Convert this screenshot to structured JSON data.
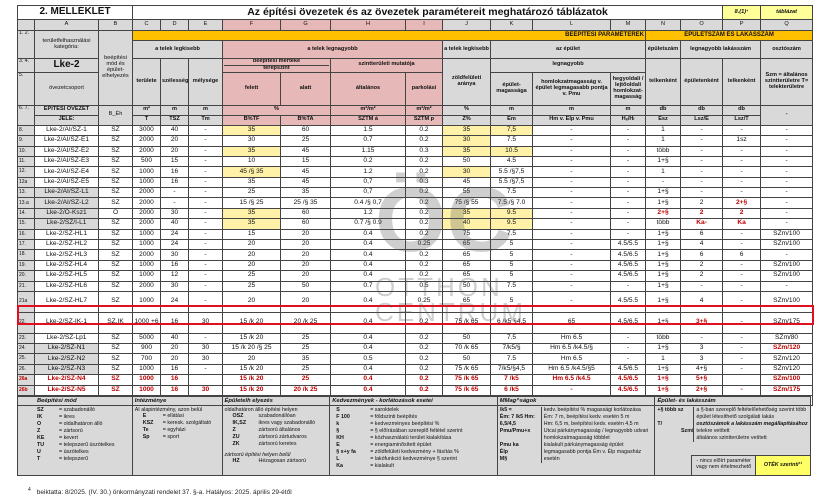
{
  "title": {
    "annex": "2. MELLÉKLET",
    "main": "Az építési övezetek és az övezetek paramétereit meghatározó táblázatok",
    "ref": "8.(1)⁴",
    "table_label": "táblázat"
  },
  "columns": [
    "A",
    "B",
    "C",
    "D",
    "E",
    "F",
    "G",
    "H",
    "I",
    "J",
    "K",
    "L",
    "M",
    "N",
    "O",
    "P",
    "Q"
  ],
  "header": {
    "rn12": "1. 2.",
    "rn34": "3. 4.",
    "rn5": "5.",
    "rn67": "6. 7.",
    "category_label": "területfelhasználási kategória:",
    "category": "Lke-2",
    "zone_group": "övezetcsoport",
    "zone_code_1": "ÉPÍTÉSI ÖVEZET",
    "zone_code_2": "JELE:",
    "build_mode": "beépítési mód és épület-elhelyezés",
    "build_mode_code": "B_Éh",
    "params": "BEÉPÍTÉSI PARAMÉTEREK",
    "counts": "ÉPÜLETSZÁM ÉS LAKÁSSZÁM",
    "plot_min": "a telek legkisebb",
    "plot_max": "a telek legnagyobb",
    "plot_min2": "a telek legkisebb",
    "building": "az épület",
    "building_count": "épületszám",
    "max_flats": "legnagyobb lakásszám",
    "divisor": "osztószám",
    "area": "területe",
    "width": "szélessége",
    "depth": "mélysége",
    "coverage": "beépítési mértéke",
    "terrain": "terepszint",
    "floor_ratio": "szintterületi mutatója",
    "green": "zöldfelületi aránya",
    "largest": "legnagyobb",
    "per_plot": "telkenként",
    "per_building": "épületenként",
    "per_plot2": "telkenként",
    "divisor_note": "Szm = általános szintterületre T= telekterületre",
    "above": "felett",
    "below": "alatt",
    "general": "általános",
    "parking": "parkolási",
    "bheight": "épület-magassága",
    "facade": "homlokzatmagasság v. épület legmagasabb pontja v. Pmu",
    "slope": "hegyoldali / lejtőoldali homlokzat-magasság",
    "units": [
      "m²",
      "m",
      "m",
      "%",
      "m²/m²",
      "m²/m²",
      "%",
      "m",
      "m",
      "m",
      "db",
      "db",
      "db",
      "-"
    ],
    "codes": [
      "T",
      "TSZ",
      "Tm",
      "B%TF",
      "B%TA",
      "SZTM á",
      "SZTM p",
      "Z%",
      "Ém",
      "Hm v. Élp v. Pmu",
      "Hₑ/Hₗ",
      "Ész",
      "Lsz/É",
      "Lsz/T"
    ]
  },
  "rows": [
    {
      "n": "8.",
      "c": [
        "Lke-2/AI/SZ-1",
        "SZ",
        "3000",
        "40",
        "-",
        "35",
        "60",
        "1.5",
        "0.2",
        "35",
        "7,5",
        "-",
        "-",
        "1",
        "-",
        "-",
        "-"
      ],
      "hl": [
        5,
        9,
        10
      ]
    },
    {
      "n": "9.",
      "c": [
        "Lke-2/AI/SZ-E1",
        "SZ",
        "2000",
        "20",
        "-",
        "30",
        "25",
        "0.7",
        "0.2",
        "30",
        "7.5",
        "-",
        "-",
        "1",
        "-",
        "1sz",
        "-"
      ],
      "hl": [
        9
      ]
    },
    {
      "n": "10.",
      "c": [
        "Lke-2/AI/SZ-E2",
        "SZ",
        "2000",
        "20",
        "-",
        "35",
        "45",
        "1.15",
        "0.3",
        "35",
        "10.5",
        "-",
        "-",
        "több",
        "-",
        "-",
        "-"
      ],
      "hl": [
        5,
        9,
        10
      ]
    },
    {
      "n": "11.",
      "c": [
        "Lke-2/AI/SZ-E3",
        "SZ",
        "500",
        "15",
        "-",
        "10",
        "15",
        "0.2",
        "0.2",
        "50",
        "4.5",
        "-",
        "-",
        "1+§",
        "-",
        "-",
        "-"
      ]
    },
    {
      "n": "12.",
      "c": [
        "Lke-2/AI/SZ-E4",
        "SZ",
        "1000",
        "16",
        "-",
        "45 /§ 35",
        "45",
        "1.2",
        "0.2",
        "30",
        "5.5 /§7,5",
        "-",
        "-",
        "1",
        "-",
        "-",
        "-"
      ],
      "hl": [
        5,
        9
      ]
    },
    {
      "n": "12a",
      "c": [
        "Lke-2/AI/SZ-E5",
        "SZ",
        "1000",
        "16",
        "-",
        "35",
        "45",
        "0,7",
        "0.3",
        "45",
        "5.5 /§7,5",
        "-",
        "-",
        "-",
        "-",
        "-",
        "-"
      ]
    },
    {
      "n": "13.",
      "c": [
        "Lke-2/AI/SZ-L1",
        "SZ",
        "2000",
        "-",
        "-",
        "25",
        "35",
        "0,7",
        "0.2",
        "55",
        "7.5",
        "-",
        "-",
        "1+§",
        "-",
        "-",
        "-"
      ],
      "shade": true
    },
    {
      "n": "13.a",
      "c": [
        "Lke-2/AI/SZ-L2",
        "SZ",
        "2000",
        "-",
        "-",
        "15 /§ 25",
        "25 /§ 35",
        "0.4 /§ 0,7",
        "0.2",
        "75 /§ 55",
        "7.5 /§ 7.0",
        "-",
        "-",
        "1+§",
        "2",
        "2+§",
        "-"
      ],
      "shade": true,
      "rc": [
        15
      ]
    },
    {
      "n": "14.",
      "c": [
        "Lke-2/O-Ksz1",
        "O",
        "2000",
        "30",
        "-",
        "35",
        "60",
        "1.2",
        "0.2",
        "35",
        "9.5",
        "-",
        "-",
        "2+§",
        "2",
        "2",
        "-"
      ],
      "shade": true,
      "hl": [
        5,
        9,
        10
      ],
      "rc": [
        13,
        14,
        15
      ]
    },
    {
      "n": "15.",
      "c": [
        "Lke-2/SZ/I-L1",
        "SZ",
        "2000",
        "40",
        "-",
        "35",
        "60",
        "0.7 /§ 0.9",
        "0.2",
        "40",
        "9.5",
        "-",
        "-",
        "több",
        "Ka-",
        "Ka",
        "-"
      ],
      "shade": true,
      "hl": [
        5,
        9,
        10
      ],
      "rc": [
        14,
        15
      ]
    },
    {
      "n": "16.",
      "c": [
        "Lke-2/SZ-HL1",
        "SZ",
        "1000",
        "24",
        "-",
        "15",
        "20",
        "0.4",
        "0.2",
        "75",
        "7.5",
        "-",
        "-",
        "1+§",
        "6",
        "-",
        "SZm/100"
      ]
    },
    {
      "n": "17.",
      "c": [
        "Lke-2/SZ-HL2",
        "SZ",
        "1000",
        "24",
        "-",
        "20",
        "20",
        "0.4",
        "0.25",
        "65",
        "5",
        "-",
        "4.5/5.5",
        "1+§",
        "4",
        "-",
        "SZm/100"
      ]
    },
    {
      "n": "18.",
      "c": [
        "Lke-2/SZ-HL3",
        "SZ",
        "2000",
        "30",
        "-",
        "20",
        "20",
        "0.4",
        "0.2",
        "65",
        "5",
        "-",
        "4.5/6.5",
        "1+§",
        "6",
        "6",
        "-"
      ]
    },
    {
      "n": "19.",
      "c": [
        "Lke-2/SZ-HL4",
        "SZ",
        "1000",
        "16",
        "-",
        "20",
        "20",
        "0.4",
        "0.2",
        "65",
        "5",
        "-",
        "4.5/6.5",
        "1+§",
        "2",
        "-",
        "SZm/100"
      ]
    },
    {
      "n": "20.",
      "c": [
        "Lke-2/SZ-HL5",
        "SZ",
        "1000",
        "12",
        "-",
        "25",
        "20",
        "0.4",
        "0.2",
        "65",
        "5",
        "-",
        "4.5/6.5",
        "1+§",
        "2",
        "-",
        "SZm/100"
      ]
    },
    {
      "n": "21.",
      "c": [
        "Lke-2/SZ-HL6",
        "SZ",
        "2000",
        "30",
        "-",
        "25",
        "50",
        "0.7",
        "0.5",
        "50",
        "7.5",
        "-",
        "-",
        "1+§",
        "-",
        "-",
        "-"
      ]
    },
    {
      "n": "21a",
      "c": [
        "Lke-2/SZ-HL7",
        "SZ",
        "1000",
        "24",
        "-",
        "20",
        "20",
        "0.4",
        "0.25",
        "65",
        "5",
        "-",
        "4.5/5.5",
        "1+§",
        "4",
        "-",
        "SZm/100"
      ],
      "tall": true
    },
    {
      "n": "22.",
      "c": [
        "Lke-2/SZ-IK-1",
        "SZ,IK",
        "1000 +6",
        "16",
        "30",
        "15 /k 20",
        "20 /k 25",
        "0.4",
        "0.2",
        "75 /k 65",
        "6 /k5 §4.5",
        "65",
        "4.5/6.5",
        "1+§",
        "3+§",
        "-",
        "SZm/175"
      ],
      "tall": true,
      "rc": [
        14
      ]
    },
    {
      "n": "23.",
      "c": [
        "Lke-2/SZ-Lp1",
        "SZ",
        "5000",
        "40",
        "-",
        "15 /k 20",
        "25",
        "0.4",
        "0.2",
        "50",
        "7.5",
        "Hm 6.5",
        "-",
        "több",
        "-",
        "-",
        "SZm/80"
      ]
    },
    {
      "n": "24.",
      "c": [
        "Lke-2/SZ-N1",
        "SZ",
        "900",
        "20",
        "30",
        "15 /k 20 /§ 25",
        "25",
        "0.4",
        "0.2",
        "70 /k 65",
        "7/k5/§",
        "Hm 6.5 /k4.5/§",
        "-",
        "1+§",
        "3",
        "-",
        "SZm/120"
      ],
      "shade": true,
      "rc": [
        16
      ]
    },
    {
      "n": "25.",
      "c": [
        "Lke-2/SZ-N2",
        "SZ",
        "700",
        "20",
        "30",
        "20",
        "35",
        "0.5",
        "0.2",
        "50",
        "7.5",
        "Hm 6.5",
        "-",
        "1",
        "3",
        "-",
        "SZm/120"
      ],
      "shade": true
    },
    {
      "n": "26.",
      "c": [
        "Lke-2/SZ-N3",
        "SZ",
        "1000",
        "16",
        "-",
        "15 /k 20",
        "25",
        "0.4",
        "0.2",
        "75 /k 65",
        "7/k5/§4,5",
        "Hm 6.5 /k4.5/§5",
        "4.5/6.5",
        "1+§",
        "4+§",
        "-",
        "SZm/120"
      ],
      "shade": true
    },
    {
      "n": "26a",
      "c": [
        "Lke-2/SZ-N4",
        "SZ",
        "1000",
        "16",
        "",
        "15 /k 20",
        "25",
        "0.4",
        "0.2",
        "75 /k 65",
        "7 /k5",
        "Hm 6.5 /k4.5",
        "4.5/6.5",
        "1+§",
        "5+§",
        "",
        "SZm/100"
      ],
      "red": true
    },
    {
      "n": "26b",
      "c": [
        "Lke-2/SZ-N5",
        "SZ",
        "1000",
        "16",
        "30",
        "15 /k 20",
        "20 /k 25",
        "0.4",
        "0.2",
        "75 /k 65",
        "6 /k5",
        "-",
        "4.5/6.5",
        "1+§",
        "2+§",
        "-",
        "SZm/175"
      ],
      "red": true
    },
    {
      "n": "27.",
      "c": [
        "Lke-2/SZ-S1",
        "SZ",
        "3000",
        "40",
        "-",
        "15 /k 20",
        "25",
        "0.4",
        "0.2",
        "50",
        "7.5 /k5",
        "Hm 6.5",
        "-",
        "több",
        "-",
        "-",
        "SZm/80"
      ]
    }
  ],
  "legend": {
    "build_mode": {
      "title": "Beépítési mód",
      "items": [
        [
          "SZ",
          "= szabadonálló"
        ],
        [
          "IK",
          "= ikres"
        ],
        [
          "O",
          "= oldalhatáron álló"
        ],
        [
          "Z",
          "= zártsorú"
        ],
        [
          "KE",
          "= kevert"
        ],
        [
          "TU",
          "= telepszerű úszótelkes"
        ],
        [
          "U",
          "= úszótelkes"
        ],
        [
          "T",
          "= telepszerű"
        ]
      ]
    },
    "institution": {
      "title": "Intézménye",
      "intro": "AI alapintézmény, azon belül",
      "items": [
        [
          "E",
          "= ellátási"
        ],
        [
          "KSZ",
          "= keresk. szolgáltató"
        ],
        [
          "Te",
          "= egyházi"
        ],
        [
          "Sp",
          "= sport"
        ]
      ]
    },
    "placement": {
      "title": "Épületelh elyezés",
      "intro": "oldalhatáron álló építési helyen",
      "items": [
        [
          "OSZ",
          "szabadonállóan"
        ],
        [
          "IK,SZ",
          "ikres vagy szabadonálló"
        ],
        [
          "Z",
          "zártsorú általános"
        ],
        [
          "ZU",
          "zártsorú zártudvaros"
        ],
        [
          "ZK",
          "zártsorú keretes"
        ]
      ],
      "intro2": "zártsorú építési helyen belül",
      "items2": [
        [
          "HZ",
          "Hézagosan zártsorú"
        ]
      ]
    },
    "benefits": {
      "title": "Kedvezmények - korlátozások esetei",
      "items": [
        [
          "S",
          "= saroktelek"
        ],
        [
          "F 100",
          "= földszinti beépítés"
        ],
        [
          "k",
          "= kedvezményes beépítési %"
        ],
        [
          "§",
          "= § előírásában szereplő feltétel szerint"
        ],
        [
          "KH",
          "= közhasználatú terület kialakítása"
        ],
        [
          "E",
          "= energiaminősített épület"
        ],
        [
          "§ x+y fa",
          "= zöldfelületi kedvezmény + fásítás %"
        ],
        [
          "L",
          "= lakófunkció kedvezménye § szerint"
        ],
        [
          "Ka",
          "= kialakult"
        ]
      ]
    },
    "heights": {
      "title": "MMag^ságok",
      "keys": [
        "/k5 =",
        "Ém: 7 /k5 Hm:",
        "6,5/4,5",
        "Pmu/Pmu+x",
        "",
        "Pmu ka",
        "Élp",
        "M§"
      ],
      "text": [
        "kedv. beépítési % magassági korlátozása",
        "Ém: 7 m, beépítési kedv. esetén 5 m",
        "Hm: 6,5 m, beépítési kedv. esetén 4,5 m",
        "Utcai párkánymagasság / legnagyobb udvari homlokzatmagasság többlet",
        "kialakult párkánymagasság épület legmagasabb pontja Ém v. Élp magasház esetén"
      ]
    },
    "counts": {
      "title": "Épület- és lakásszám",
      "k1": "+§ több sz",
      "v1": "a §-ban szereplő feltétel/lehetőség szerint több épület létesíthető szolgálati lakás",
      "k2": "T/",
      "k3": "Szm/",
      "v2": "osztószámok a lakásszám megállapításához",
      "v3": "telekre vetített",
      "v4": "általános szintterületre vetített",
      "none": "- nincs előírt paraméter vagy nem értelmezhető",
      "oteK": "OTÉK szerinti¹¹"
    }
  },
  "watermark": {
    "logo": "ÖC",
    "line1": "OTTHON",
    "line2": "CENTRUM"
  },
  "footnote": {
    "mark": "4",
    "text": "beiktatta: 8/2025. (IV. 30.) önkormányzati rendelet 37. §-a. Hatályos: 2025. április 29-étől"
  },
  "colors": {
    "orange": "#ffc000",
    "pink": "#e6b8b7",
    "gray": "#d9d9d9",
    "yellow_highlight": "#fff2a8",
    "red": "#c00000",
    "outline": "#e01020"
  }
}
